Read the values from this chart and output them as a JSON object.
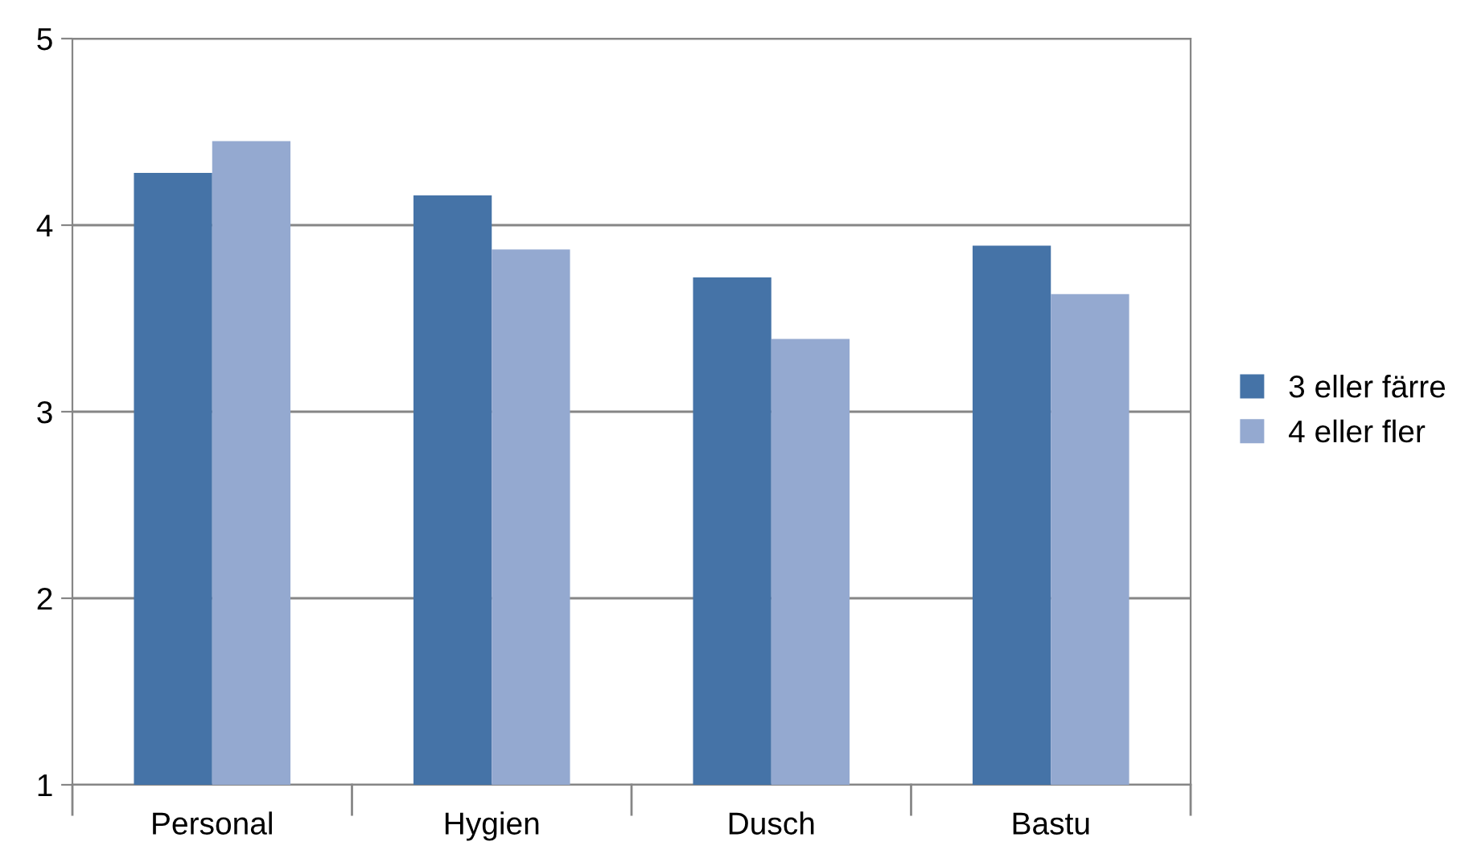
{
  "chart_data": {
    "type": "bar",
    "categories": [
      "Personal",
      "Hygien",
      "Dusch",
      "Bastu"
    ],
    "series": [
      {
        "name": "3 eller färre",
        "color": "#4573a7",
        "values": [
          4.28,
          4.16,
          3.72,
          3.89
        ]
      },
      {
        "name": "4 eller fler",
        "color": "#94a9d0",
        "values": [
          4.45,
          3.87,
          3.39,
          3.63
        ]
      }
    ],
    "ylim": [
      1,
      5
    ],
    "yticks": [
      1,
      2,
      3,
      4,
      5
    ],
    "grid": "y",
    "legend": "right"
  }
}
